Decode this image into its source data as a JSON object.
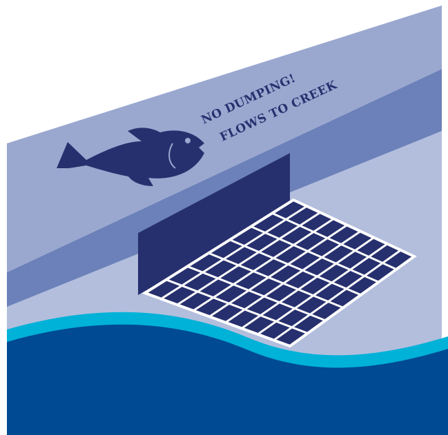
{
  "stencil": {
    "line1": "NO DUMPING!",
    "line2": "FLOWS TO CREEK"
  }
}
